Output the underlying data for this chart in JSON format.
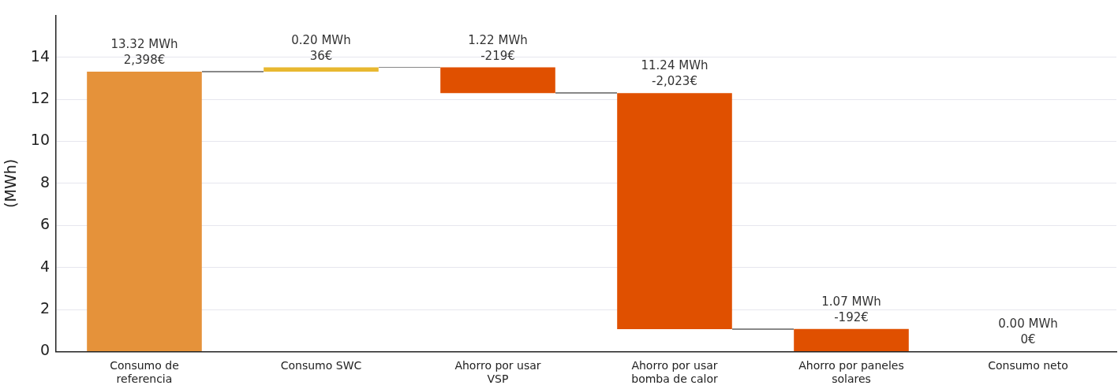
{
  "chart_data": {
    "type": "bar",
    "ylabel": "(MWh)",
    "categories": [
      "Consumo de referencia",
      "Consumo SWC",
      "Ahorro por usar VSP",
      "Ahorro por usar bomba de calor",
      "Ahorro por paneles solares",
      "Consumo neto"
    ],
    "values": [
      13.32,
      0.2,
      1.22,
      11.24,
      1.07,
      0
    ],
    "base": [
      0,
      13.32,
      12.3,
      1.06,
      0,
      null
    ],
    "colors": [
      "#e5923a",
      "#e8b830",
      "#e05000",
      "#e05000",
      "#e05000",
      "#e05000"
    ],
    "value_labels": [
      "13.32 MWh\n2,398€",
      "0.20 MWh\n36€",
      "1.22 MWh\n-219€",
      "11.24 MWh\n-2,023€",
      "1.07 MWh\n-192€",
      "0.00 MWh\n0€"
    ],
    "ylim": [
      0,
      16
    ],
    "yticks": [
      0,
      2,
      4,
      6,
      8,
      10,
      12,
      14
    ],
    "grid": "y",
    "legend": false
  }
}
